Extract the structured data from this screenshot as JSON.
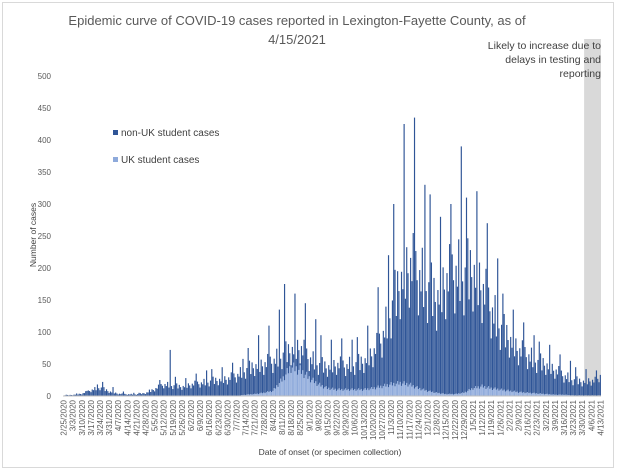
{
  "chart_data": {
    "type": "bar",
    "stacked": true,
    "title": "Epidemic curve of COVID-19 cases reported in Lexington-Fayette County, as of 4/15/2021",
    "title_lines": [
      "Epidemic curve of COVID-19 cases reported in Lexington-Fayette County, as of",
      "4/15/2021"
    ],
    "xlabel": "Date of onset (or specimen collection)",
    "ylabel": "Number of cases",
    "ylim": [
      0,
      500
    ],
    "yticks": [
      0,
      50,
      100,
      150,
      200,
      250,
      300,
      350,
      400,
      450,
      500
    ],
    "x_start": "2/25/2020",
    "x_end": "4/13/2021",
    "xtick_labels": [
      "2/25/2020",
      "3/3/2020",
      "3/10/2020",
      "3/17/2020",
      "3/24/2020",
      "3/31/2020",
      "4/7/2020",
      "4/14/2020",
      "4/21/2020",
      "4/28/2020",
      "5/5/2020",
      "5/12/2020",
      "5/19/2020",
      "5/26/2020",
      "6/2/2020",
      "6/9/2020",
      "6/16/2020",
      "6/23/2020",
      "6/30/2020",
      "7/7/2020",
      "7/14/2020",
      "7/21/2020",
      "7/28/2020",
      "8/4/2020",
      "8/11/2020",
      "8/18/2020",
      "8/25/2020",
      "9/1/2020",
      "9/8/2020",
      "9/15/2020",
      "9/22/2020",
      "9/29/2020",
      "10/6/2020",
      "10/13/2020",
      "10/20/2020",
      "10/27/2020",
      "11/3/2020",
      "11/10/2020",
      "11/17/2020",
      "11/24/2020",
      "12/1/2020",
      "12/8/2020",
      "12/15/2020",
      "12/22/2020",
      "12/29/2020",
      "1/5/2021",
      "1/12/2021",
      "1/19/2021",
      "1/26/2021",
      "2/2/2021",
      "2/9/2021",
      "2/16/2021",
      "2/23/2021",
      "3/2/2021",
      "3/9/2021",
      "3/16/2021",
      "3/23/2021",
      "3/30/2021",
      "4/6/2021",
      "4/13/2021"
    ],
    "series": [
      {
        "name": "non-UK student cases",
        "color": "#2f5597",
        "weekly_avg_daily_total": [
          1,
          2,
          4,
          10,
          15,
          8,
          4,
          3,
          3,
          5,
          12,
          20,
          18,
          16,
          20,
          22,
          25,
          28,
          30,
          35,
          45,
          52,
          55,
          60,
          70,
          80,
          85,
          65,
          55,
          50,
          55,
          52,
          55,
          60,
          75,
          100,
          150,
          200,
          230,
          210,
          190,
          170,
          200,
          215,
          210,
          220,
          190,
          150,
          120,
          100,
          80,
          70,
          60,
          55,
          45,
          35,
          28,
          25,
          27,
          25
        ],
        "weekly_peak": [
          2,
          4,
          8,
          18,
          22,
          14,
          7,
          5,
          5,
          10,
          25,
          72,
          30,
          28,
          35,
          40,
          42,
          45,
          52,
          58,
          75,
          95,
          110,
          135,
          175,
          160,
          145,
          120,
          95,
          88,
          90,
          88,
          92,
          110,
          170,
          220,
          300,
          425,
          435,
          330,
          315,
          280,
          300,
          390,
          310,
          320,
          270,
          215,
          160,
          135,
          115,
          95,
          85,
          80,
          65,
          55,
          45,
          42,
          40,
          33
        ]
      },
      {
        "name": "UK student cases",
        "color": "#8eaadb",
        "weekly_avg_daily": [
          0,
          0,
          0,
          0,
          0,
          0,
          0,
          0,
          0,
          0,
          0,
          0,
          0,
          0,
          0,
          0,
          0,
          0,
          0,
          0,
          2,
          3,
          5,
          8,
          25,
          45,
          40,
          28,
          18,
          12,
          10,
          10,
          10,
          10,
          12,
          15,
          18,
          20,
          18,
          12,
          8,
          5,
          3,
          3,
          5,
          12,
          15,
          12,
          10,
          8,
          6,
          5,
          4,
          3,
          2,
          2,
          1,
          1,
          1,
          1
        ]
      }
    ],
    "annotation": {
      "text": "Likely to increase due to delays in testing and reporting",
      "lines": [
        "Likely to increase due to",
        "delays in testing and",
        "reporting"
      ],
      "shaded_from": "4/1/2021",
      "shaded_to": "4/13/2021",
      "color": "#d9d9d9"
    },
    "legend": {
      "placement": "upper-left, inside plot"
    },
    "grid": false
  }
}
